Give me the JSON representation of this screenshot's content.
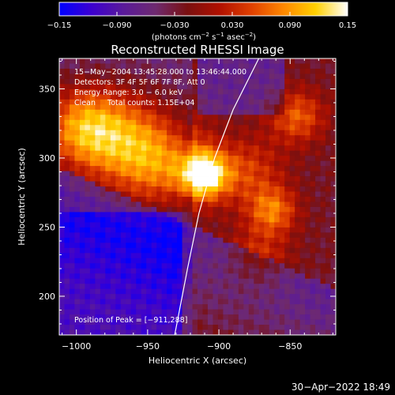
{
  "chart_data": {
    "type": "heatmap",
    "title": "Reconstructed RHESSI Image",
    "xlabel": "Heliocentric X (arcsec)",
    "ylabel": "Heliocentric Y (arcsec)",
    "xlim": [
      -1012,
      -818
    ],
    "ylim": [
      172,
      372
    ],
    "x_ticks": [
      -1000,
      -950,
      -900,
      -850
    ],
    "x_tick_labels": [
      "−1000",
      "−950",
      "−900",
      "−850"
    ],
    "y_ticks": [
      200,
      250,
      300,
      350
    ],
    "y_tick_labels": [
      "200",
      "250",
      "300",
      "350"
    ],
    "colorbar": {
      "range": [
        -0.15,
        0.15
      ],
      "ticks": [
        -0.15,
        -0.09,
        -0.03,
        0.03,
        0.09,
        0.15
      ],
      "tick_labels": [
        "−0.15",
        "−0.090",
        "−0.030",
        "0.030",
        "0.090",
        "0.15"
      ],
      "unit_text": "(photons cm",
      "unit_parts": [
        "(photons cm",
        "−2",
        " s",
        "−1",
        " asec",
        "−2",
        ")"
      ]
    },
    "annotations": [
      "15−May−2004 13:45:28.000 to 13:46:44.000",
      "Detectors: 3F 4F 5F 6F 7F 8F, Att 0",
      "Energy Range: 3.0 − 6.0 keV",
      "Clean     Total counts: 1.15E+04"
    ],
    "peak_label": "Position of Peak = [−911,288]",
    "peak": [
      -911,
      288
    ],
    "limb_curve": [
      [
        -931,
        172
      ],
      [
        -922,
        220
      ],
      [
        -914,
        260
      ],
      [
        -903,
        300
      ],
      [
        -890,
        335
      ],
      [
        -872,
        372
      ]
    ],
    "grid": false,
    "colormap": [
      "#0000ff",
      "#3c00d0",
      "#5a1a9a",
      "#6e2a70",
      "#7a1010",
      "#b01000",
      "#e04000",
      "#ff8800",
      "#ffd000",
      "#ffffff"
    ]
  },
  "footer": {
    "timestamp": "30−Apr−2022 18:49"
  }
}
